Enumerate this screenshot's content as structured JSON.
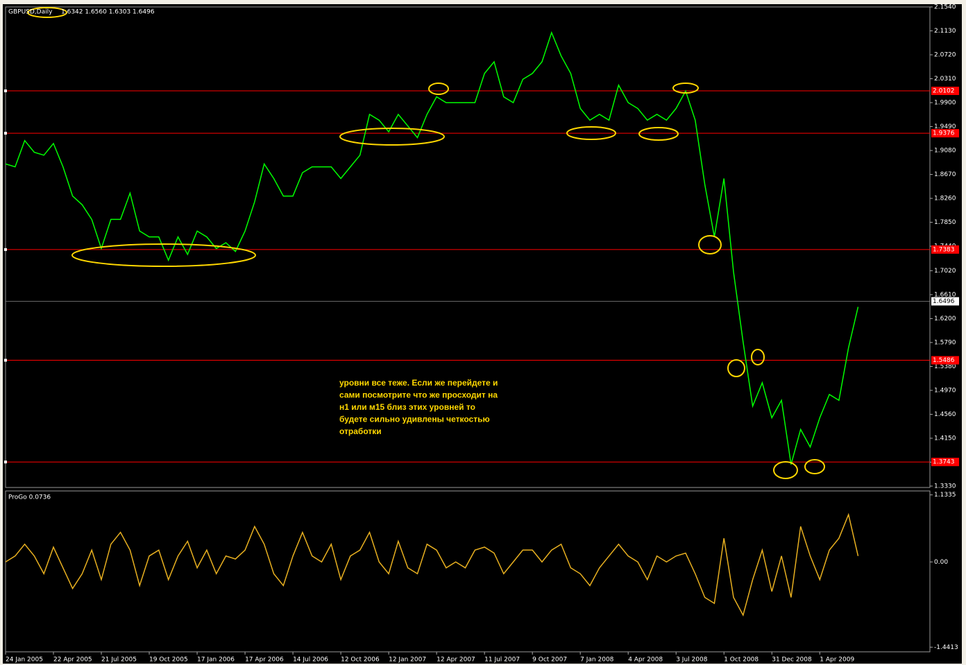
{
  "chart_data": [
    {
      "type": "line",
      "title": "GBPUSD,Daily",
      "subtitle": "1.6342 1.6560 1.6303 1.6496",
      "color": "#00ff00",
      "values": [
        1.885,
        1.88,
        1.925,
        1.905,
        1.9,
        1.92,
        1.88,
        1.83,
        1.815,
        1.79,
        1.74,
        1.79,
        1.79,
        1.835,
        1.77,
        1.76,
        1.76,
        1.72,
        1.76,
        1.73,
        1.77,
        1.76,
        1.74,
        1.75,
        1.735,
        1.77,
        1.82,
        1.885,
        1.86,
        1.83,
        1.83,
        1.87,
        1.88,
        1.88,
        1.88,
        1.86,
        1.88,
        1.9,
        1.97,
        1.96,
        1.94,
        1.97,
        1.95,
        1.93,
        1.97,
        2.0,
        1.99,
        1.99,
        1.99,
        1.99,
        2.04,
        2.06,
        2.0,
        1.99,
        2.03,
        2.04,
        2.06,
        2.11,
        2.07,
        2.04,
        1.98,
        1.96,
        1.97,
        1.96,
        2.02,
        1.99,
        1.98,
        1.96,
        1.97,
        1.96,
        1.98,
        2.01,
        1.96,
        1.85,
        1.76,
        1.86,
        1.7,
        1.58,
        1.47,
        1.51,
        1.45,
        1.48,
        1.37,
        1.43,
        1.4,
        1.45,
        1.49,
        1.48,
        1.57,
        1.64
      ],
      "xlim": [
        0,
        96.5
      ],
      "xticks": [
        {
          "value": 0,
          "label": "24 Jan 2005"
        },
        {
          "value": 5,
          "label": "22 Apr 2005"
        },
        {
          "value": 10,
          "label": "21 Jul 2005"
        },
        {
          "value": 15,
          "label": "19 Oct 2005"
        },
        {
          "value": 20,
          "label": "17 Jan 2006"
        },
        {
          "value": 25,
          "label": "17 Apr 2006"
        },
        {
          "value": 30,
          "label": "14 Jul 2006"
        },
        {
          "value": 35,
          "label": "12 Oct 2006"
        },
        {
          "value": 40,
          "label": "12 Jan 2007"
        },
        {
          "value": 45,
          "label": "12 Apr 2007"
        },
        {
          "value": 50,
          "label": "11 Jul 2007"
        },
        {
          "value": 55,
          "label": "9 Oct 2007"
        },
        {
          "value": 60,
          "label": "7 Jan 2008"
        },
        {
          "value": 65,
          "label": "4 Apr 2008"
        },
        {
          "value": 70,
          "label": "3 Jul 2008"
        },
        {
          "value": 75,
          "label": "1 Oct 2008"
        },
        {
          "value": 80,
          "label": "31 Dec 2008"
        },
        {
          "value": 85,
          "label": "1 Apr 2009"
        }
      ],
      "ylim": [
        1.3306,
        2.154
      ],
      "yticks": [
        {
          "value": 2.154,
          "label": "2.1540"
        },
        {
          "value": 2.113,
          "label": "2.1130"
        },
        {
          "value": 2.072,
          "label": "2.0720"
        },
        {
          "value": 2.031,
          "label": "2.0310"
        },
        {
          "value": 1.99,
          "label": "1.9900"
        },
        {
          "value": 1.949,
          "label": "1.9490"
        },
        {
          "value": 1.908,
          "label": "1.9080"
        },
        {
          "value": 1.867,
          "label": "1.8670"
        },
        {
          "value": 1.826,
          "label": "1.8260"
        },
        {
          "value": 1.785,
          "label": "1.7850"
        },
        {
          "value": 1.744,
          "label": "1.7440"
        },
        {
          "value": 1.702,
          "label": "1.7020"
        },
        {
          "value": 1.661,
          "label": "1.6610"
        },
        {
          "value": 1.62,
          "label": "1.6200"
        },
        {
          "value": 1.579,
          "label": "1.5790"
        },
        {
          "value": 1.538,
          "label": "1.5380"
        },
        {
          "value": 1.497,
          "label": "1.4970"
        },
        {
          "value": 1.456,
          "label": "1.4560"
        },
        {
          "value": 1.415,
          "label": "1.4150"
        },
        {
          "value": 1.374,
          "label": "1.3740"
        },
        {
          "value": 1.333,
          "label": "1.3330"
        }
      ],
      "levels": [
        2.0102,
        1.9376,
        1.7383,
        1.5486,
        1.3743
      ],
      "level_color": "#ff0000",
      "last": 1.6496,
      "annotation": [
        "уровни все теже. Если же перейдете и",
        "сами посмотрите что же просходит на",
        "н1 или м15 близ этих уровней то",
        "будете сильно удивлены четкостью",
        "отработки"
      ]
    },
    {
      "type": "line",
      "title": "ProGo 0.0736",
      "color": "#e8b020",
      "values": [
        0.0,
        0.1,
        0.3,
        0.1,
        -0.2,
        0.25,
        -0.1,
        -0.45,
        -0.2,
        0.2,
        -0.3,
        0.3,
        0.5,
        0.2,
        -0.4,
        0.1,
        0.2,
        -0.3,
        0.1,
        0.35,
        -0.1,
        0.2,
        -0.2,
        0.1,
        0.05,
        0.2,
        0.6,
        0.3,
        -0.2,
        -0.4,
        0.1,
        0.5,
        0.1,
        0.0,
        0.3,
        -0.3,
        0.1,
        0.2,
        0.5,
        0.0,
        -0.2,
        0.35,
        -0.1,
        -0.2,
        0.3,
        0.2,
        -0.1,
        0.0,
        -0.1,
        0.2,
        0.25,
        0.15,
        -0.2,
        0.0,
        0.2,
        0.2,
        0.0,
        0.2,
        0.3,
        -0.1,
        -0.2,
        -0.4,
        -0.1,
        0.1,
        0.3,
        0.1,
        0.0,
        -0.3,
        0.1,
        0.0,
        0.1,
        0.15,
        -0.2,
        -0.6,
        -0.7,
        0.4,
        -0.6,
        -0.9,
        -0.3,
        0.2,
        -0.5,
        0.1,
        -0.6,
        0.6,
        0.1,
        -0.3,
        0.2,
        0.4,
        0.8,
        0.1
      ],
      "xlim": [
        0,
        96.5
      ],
      "ylim": [
        -1.52,
        1.2
      ],
      "yticks": [
        1.1335,
        {
          "value": 0,
          "label": "0.00"
        },
        -1.4413
      ]
    }
  ]
}
